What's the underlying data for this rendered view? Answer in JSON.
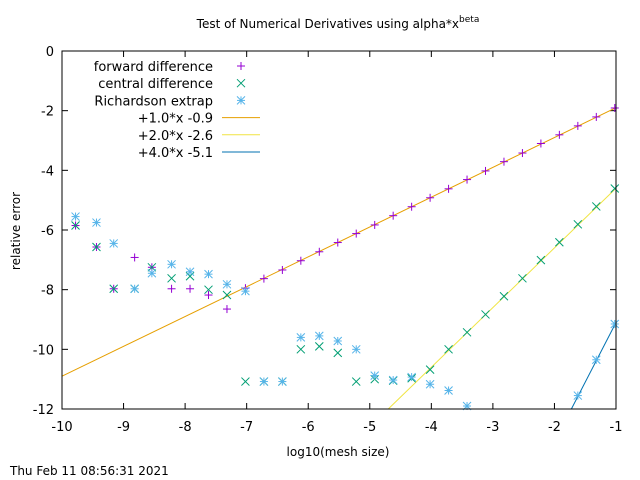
{
  "chart_data": {
    "type": "scatter",
    "title": "Test of Numerical Derivatives using alpha*x",
    "title_superscript": "beta",
    "xlabel": "log10(mesh size)",
    "ylabel": "relative error",
    "xlim": [
      -10,
      -1
    ],
    "ylim": [
      -12,
      0
    ],
    "xticks": [
      -10,
      -9,
      -8,
      -7,
      -6,
      -5,
      -4,
      -3,
      -2,
      -1
    ],
    "yticks": [
      0,
      -2,
      -4,
      -6,
      -8,
      -10,
      -12
    ],
    "xtick_labels": [
      "-10",
      "-9",
      "-8",
      "-7",
      "-6",
      "-5",
      "-4",
      "-3",
      "-2",
      "-1"
    ],
    "ytick_labels": [
      "0",
      "-2",
      "-4",
      "-6",
      "-8",
      "-10",
      "-12"
    ],
    "legend_position": "top-left",
    "legend": [
      {
        "label": "forward difference",
        "symbol": "plus",
        "color": "#9400d3"
      },
      {
        "label": "central difference",
        "symbol": "cross",
        "color": "#009e73"
      },
      {
        "label": "Richardson extrap",
        "symbol": "star",
        "color": "#56b4e9"
      },
      {
        "label": "+1.0*x -0.9",
        "symbol": "line",
        "color": "#e69f00"
      },
      {
        "label": "+2.0*x -2.6",
        "symbol": "line",
        "color": "#f0e442"
      },
      {
        "label": "+4.0*x -5.1",
        "symbol": "line",
        "color": "#0072b2"
      }
    ],
    "series": [
      {
        "name": "forward difference",
        "marker": "plus",
        "color": "#9400d3",
        "points": [
          [
            -9.78,
            -5.85
          ],
          [
            -9.44,
            -6.57
          ],
          [
            -9.16,
            -7.97
          ],
          [
            -8.82,
            -6.92
          ],
          [
            -8.54,
            -7.25
          ],
          [
            -8.22,
            -7.97
          ],
          [
            -7.92,
            -7.97
          ],
          [
            -7.62,
            -8.18
          ],
          [
            -7.32,
            -8.65
          ],
          [
            -7.02,
            -7.95
          ],
          [
            -6.72,
            -7.63
          ],
          [
            -6.42,
            -7.34
          ],
          [
            -6.12,
            -7.03
          ],
          [
            -5.82,
            -6.73
          ],
          [
            -5.52,
            -6.42
          ],
          [
            -5.22,
            -6.12
          ],
          [
            -4.92,
            -5.83
          ],
          [
            -4.62,
            -5.52
          ],
          [
            -4.32,
            -5.22
          ],
          [
            -4.02,
            -4.92
          ],
          [
            -3.72,
            -4.62
          ],
          [
            -3.42,
            -4.31
          ],
          [
            -3.12,
            -4.02
          ],
          [
            -2.82,
            -3.71
          ],
          [
            -2.52,
            -3.42
          ],
          [
            -2.22,
            -3.1
          ],
          [
            -1.92,
            -2.81
          ],
          [
            -1.62,
            -2.51
          ],
          [
            -1.32,
            -2.21
          ],
          [
            -1.02,
            -1.91
          ]
        ]
      },
      {
        "name": "central difference",
        "marker": "cross",
        "color": "#009e73",
        "points": [
          [
            -9.78,
            -5.85
          ],
          [
            -9.44,
            -6.57
          ],
          [
            -9.16,
            -7.97
          ],
          [
            -8.82,
            -7.97
          ],
          [
            -8.54,
            -7.25
          ],
          [
            -8.22,
            -7.62
          ],
          [
            -7.92,
            -7.55
          ],
          [
            -7.62,
            -8.0
          ],
          [
            -7.32,
            -8.18
          ],
          [
            -7.02,
            -11.08
          ],
          [
            -6.72,
            -11.08
          ],
          [
            -6.42,
            -11.08
          ],
          [
            -6.12,
            -10.0
          ],
          [
            -5.82,
            -9.9
          ],
          [
            -5.52,
            -10.12
          ],
          [
            -5.22,
            -11.08
          ],
          [
            -4.92,
            -11.0
          ],
          [
            -4.62,
            -11.05
          ],
          [
            -4.32,
            -10.97
          ],
          [
            -4.02,
            -10.68
          ],
          [
            -3.72,
            -10.0
          ],
          [
            -3.42,
            -9.43
          ],
          [
            -3.12,
            -8.83
          ],
          [
            -2.82,
            -8.22
          ],
          [
            -2.52,
            -7.62
          ],
          [
            -2.22,
            -7.01
          ],
          [
            -1.92,
            -6.41
          ],
          [
            -1.62,
            -5.81
          ],
          [
            -1.32,
            -5.21
          ],
          [
            -1.02,
            -4.61
          ]
        ]
      },
      {
        "name": "Richardson extrap",
        "marker": "star",
        "color": "#56b4e9",
        "points": [
          [
            -9.78,
            -5.55
          ],
          [
            -9.44,
            -5.75
          ],
          [
            -9.16,
            -6.45
          ],
          [
            -8.82,
            -7.97
          ],
          [
            -8.54,
            -7.45
          ],
          [
            -8.22,
            -7.15
          ],
          [
            -7.92,
            -7.4
          ],
          [
            -7.62,
            -7.48
          ],
          [
            -7.32,
            -7.82
          ],
          [
            -7.02,
            -8.05
          ],
          [
            -6.72,
            -11.08
          ],
          [
            -6.42,
            -11.08
          ],
          [
            -6.12,
            -9.6
          ],
          [
            -5.82,
            -9.55
          ],
          [
            -5.52,
            -9.72
          ],
          [
            -5.22,
            -10.0
          ],
          [
            -4.92,
            -10.88
          ],
          [
            -4.62,
            -11.03
          ],
          [
            -4.32,
            -10.93
          ],
          [
            -4.02,
            -11.17
          ],
          [
            -3.72,
            -11.38
          ],
          [
            -3.42,
            -11.9
          ],
          [
            -1.62,
            -11.55
          ],
          [
            -1.32,
            -10.35
          ],
          [
            -1.02,
            -9.15
          ]
        ]
      }
    ],
    "fit_lines": [
      {
        "name": "+1.0*x -0.9",
        "slope": 1.0,
        "intercept": -0.9,
        "color": "#e69f00"
      },
      {
        "name": "+2.0*x -2.6",
        "slope": 2.0,
        "intercept": -2.6,
        "color": "#f0e442"
      },
      {
        "name": "+4.0*x -5.1",
        "slope": 4.0,
        "intercept": -5.1,
        "color": "#0072b2"
      }
    ]
  },
  "footer": {
    "timestamp": "Thu Feb 11 08:56:31 2021"
  }
}
